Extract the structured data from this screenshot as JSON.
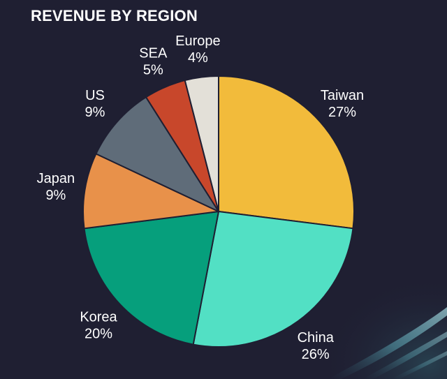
{
  "chart_data": {
    "type": "pie",
    "title": "REVENUE BY REGION",
    "slices": [
      {
        "label": "Taiwan",
        "value": 27,
        "value_label": "27%",
        "color": "#f2bb3b"
      },
      {
        "label": "China",
        "value": 26,
        "value_label": "26%",
        "color": "#52e0c4"
      },
      {
        "label": "Korea",
        "value": 20,
        "value_label": "20%",
        "color": "#069f7c"
      },
      {
        "label": "Japan",
        "value": 9,
        "value_label": "9%",
        "color": "#e8914a"
      },
      {
        "label": "US",
        "value": 9,
        "value_label": "9%",
        "color": "#5f6c79"
      },
      {
        "label": "SEA",
        "value": 5,
        "value_label": "5%",
        "color": "#c8472b"
      },
      {
        "label": "Europe",
        "value": 4,
        "value_label": "4%",
        "color": "#e3e0d8"
      }
    ],
    "start_angle": "12 o'clock",
    "direction": "clockwise",
    "legend": "none",
    "background_color": "#1f1f32",
    "slice_border_color": "#1f1f32"
  }
}
